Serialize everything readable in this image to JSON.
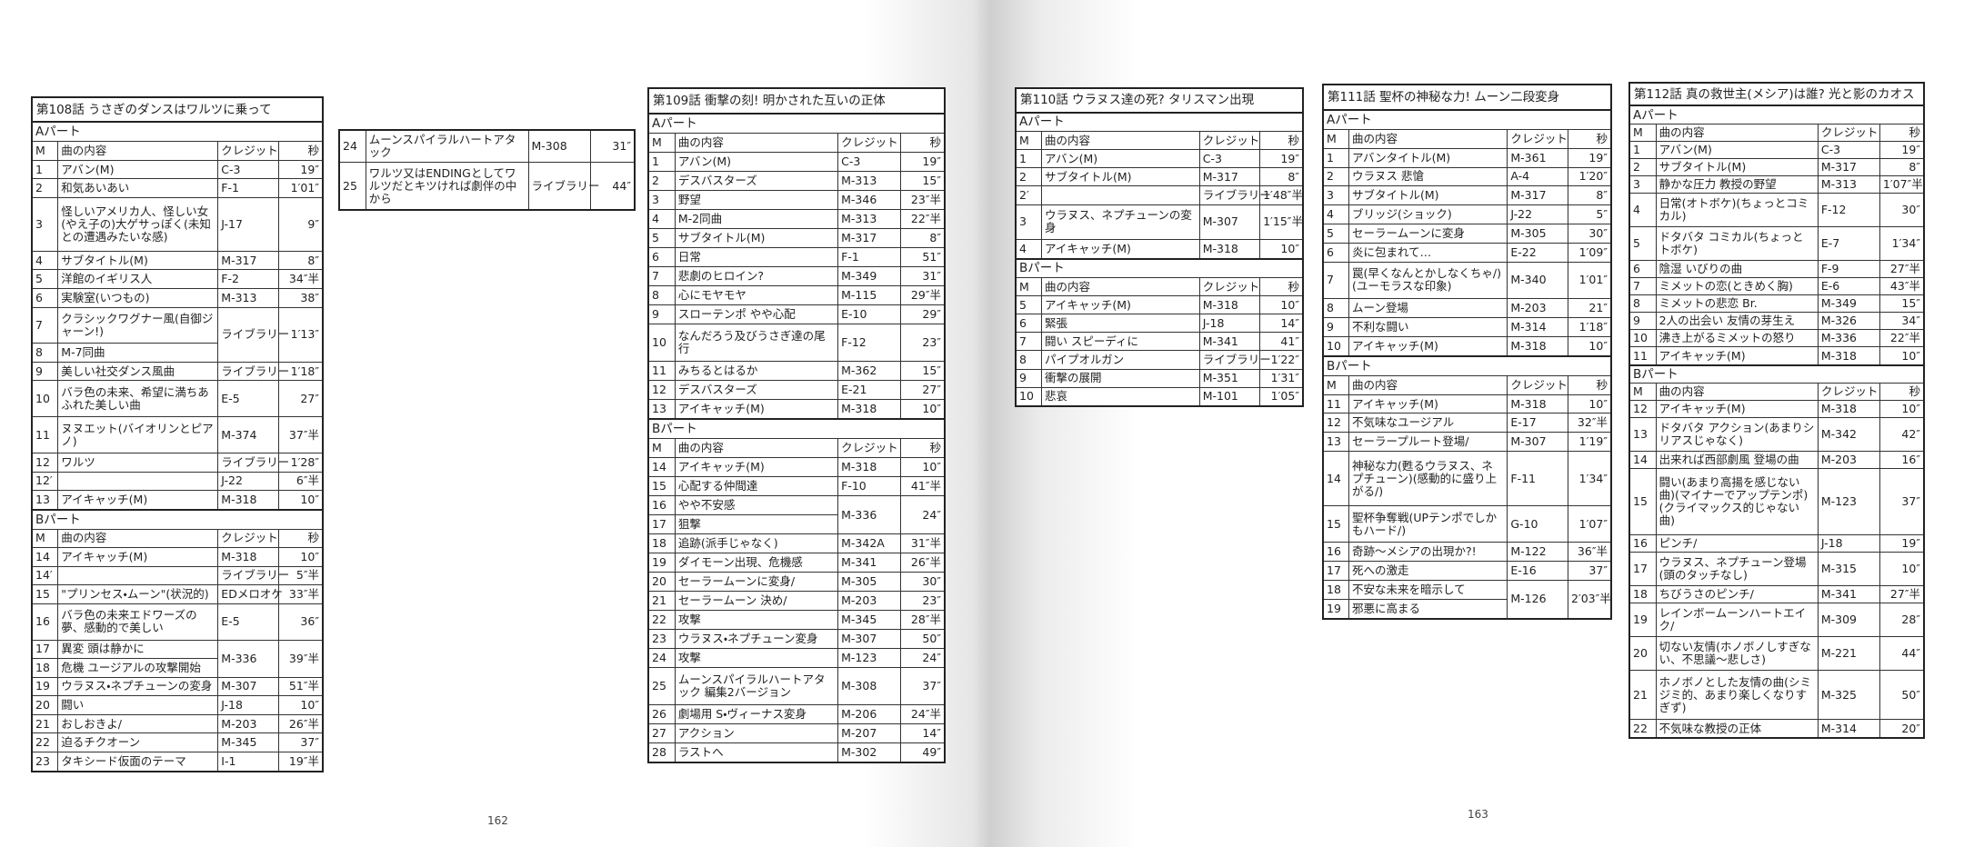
{
  "page_numbers": [
    "162",
    "163"
  ],
  "columns": [
    "M",
    "曲の内容",
    "クレジット",
    "秒"
  ],
  "tables": [
    {
      "title": "第108話 うさぎのダンスはワルツに乗って",
      "sections": [
        {
          "label": "Aパート",
          "rows": [
            {
              "m": "1",
              "content": "アバン(M)",
              "credit": "C-3",
              "sec": "19″"
            },
            {
              "m": "2",
              "content": "和気あいあい",
              "credit": "F-1",
              "sec": "1′01″"
            },
            {
              "m": "3",
              "content": "怪しいアメリカ人、怪しい女(やえ子の)大ゲサっぽく(未知との遭遇みたいな感)",
              "credit": "J-17",
              "sec": "9″"
            },
            {
              "m": "4",
              "content": "サブタイトル(M)",
              "credit": "M-317",
              "sec": "8″"
            },
            {
              "m": "5",
              "content": "洋館のイギリス人",
              "credit": "F-2",
              "sec": "34″半"
            },
            {
              "m": "6",
              "content": "実験室(いつもの)",
              "credit": "M-313",
              "sec": "38″"
            },
            {
              "group": [
                {
                  "m": "7",
                  "content": "クラシックワグナー風(自御ジャーン!)"
                },
                {
                  "m": "8",
                  "content": "M-7同曲"
                }
              ],
              "credit": "ライブラリー",
              "sec": "1′13″"
            },
            {
              "m": "9",
              "content": "美しい社交ダンス風曲",
              "credit": "ライブラリー",
              "sec": "1′18″"
            },
            {
              "m": "10",
              "content": "バラ色の未来、希望に満ちあふれた美しい曲",
              "credit": "E-5",
              "sec": "27″"
            },
            {
              "m": "11",
              "content": "ヌヌエット(バイオリンとピアノ)",
              "credit": "M-374",
              "sec": "37″半"
            },
            {
              "m": "12",
              "content": "ワルツ",
              "credit": "ライブラリー",
              "sec": "1′28″"
            },
            {
              "m": "12′",
              "credit": "J-22",
              "sec": "6″半"
            },
            {
              "m": "13",
              "content": "アイキャッチ(M)",
              "credit": "M-318",
              "sec": "10″"
            }
          ]
        },
        {
          "label": "Bパート",
          "rows": [
            {
              "m": "14",
              "content": "アイキャッチ(M)",
              "credit": "M-318",
              "sec": "10″"
            },
            {
              "m": "14′",
              "credit": "ライブラリー",
              "sec": "5″半"
            },
            {
              "m": "15",
              "content": "\"プリンセス・ムーン\"(状況的)",
              "credit": "EDメロオケ",
              "sec": "33″半"
            },
            {
              "m": "16",
              "content": "バラ色の未来エドワーズの夢、感動的で美しい",
              "credit": "E-5",
              "sec": "36″"
            },
            {
              "group": [
                {
                  "m": "17",
                  "content": "異変 頭は静かに"
                },
                {
                  "m": "18",
                  "content": "危機 ユージアルの攻撃開始"
                }
              ],
              "credit": "M-336",
              "sec": "39″半"
            },
            {
              "m": "19",
              "content": "ウラヌス・ネプチューンの変身",
              "credit": "M-307",
              "sec": "51″半"
            },
            {
              "m": "20",
              "content": "闘い",
              "credit": "J-18",
              "sec": "10″"
            },
            {
              "m": "21",
              "content": "おしおきよ/",
              "credit": "M-203",
              "sec": "26″半"
            },
            {
              "m": "22",
              "content": "迫るチクオーン",
              "credit": "M-345",
              "sec": "37″"
            },
            {
              "m": "23",
              "content": "タキシード仮面のテーマ",
              "credit": "I-1",
              "sec": "19″半"
            }
          ]
        }
      ]
    },
    {
      "sections": [
        {
          "rows": [
            {
              "m": "24",
              "content": "ムーンスパイラルハートアタック",
              "credit": "M-308",
              "sec": "31″"
            },
            {
              "m": "25",
              "content": "ワルツ又はENDINGとしてワルツだとキツければ劇伴の中から",
              "credit": "ライブラリー",
              "sec": "44″"
            }
          ]
        }
      ]
    },
    {
      "title": "第109話 衝撃の刻! 明かされた互いの正体",
      "sections": [
        {
          "label": "Aパート",
          "rows": [
            {
              "m": "1",
              "content": "アバン(M)",
              "credit": "C-3",
              "sec": "19″"
            },
            {
              "m": "2",
              "content": "デスバスターズ",
              "credit": "M-313",
              "sec": "15″"
            },
            {
              "m": "3",
              "content": "野望",
              "credit": "M-346",
              "sec": "23″半"
            },
            {
              "m": "4",
              "content": "M-2同曲",
              "credit": "M-313",
              "sec": "22″半"
            },
            {
              "m": "5",
              "content": "サブタイトル(M)",
              "credit": "M-317",
              "sec": "8″"
            },
            {
              "m": "6",
              "content": "日常",
              "credit": "F-1",
              "sec": "51″"
            },
            {
              "m": "7",
              "content": "悲劇のヒロイン?",
              "credit": "M-349",
              "sec": "31″"
            },
            {
              "m": "8",
              "content": "心にモヤモヤ",
              "credit": "M-115",
              "sec": "29″半"
            },
            {
              "m": "9",
              "content": "スローテンポ やや心配",
              "credit": "E-10",
              "sec": "29″"
            },
            {
              "m": "10",
              "content": "なんだろう及びうさぎ達の尾行",
              "credit": "F-12",
              "sec": "23″"
            },
            {
              "m": "11",
              "content": "みちるとはるか",
              "credit": "M-362",
              "sec": "15″"
            },
            {
              "m": "12",
              "content": "デスバスターズ",
              "credit": "E-21",
              "sec": "27″"
            },
            {
              "m": "13",
              "content": "アイキャッチ(M)",
              "credit": "M-318",
              "sec": "10″"
            }
          ]
        },
        {
          "label": "Bパート",
          "rows": [
            {
              "m": "14",
              "content": "アイキャッチ(M)",
              "credit": "M-318",
              "sec": "10″"
            },
            {
              "m": "15",
              "content": "心配する仲間達",
              "credit": "F-10",
              "sec": "41″半"
            },
            {
              "group": [
                {
                  "m": "16",
                  "content": "やや不安感"
                },
                {
                  "m": "17",
                  "content": "狙撃"
                }
              ],
              "credit": "M-336",
              "sec": "24″"
            },
            {
              "m": "18",
              "content": "追跡(派手じゃなく)",
              "credit": "M-342A",
              "sec": "31″半"
            },
            {
              "m": "19",
              "content": "ダイモーン出現、危機感",
              "credit": "M-341",
              "sec": "26″半"
            },
            {
              "m": "20",
              "content": "セーラームーンに変身/",
              "credit": "M-305",
              "sec": "30″"
            },
            {
              "m": "21",
              "content": "セーラームーン 決め/",
              "credit": "M-203",
              "sec": "23″"
            },
            {
              "m": "22",
              "content": "攻撃",
              "credit": "M-345",
              "sec": "28″半"
            },
            {
              "m": "23",
              "content": "ウラヌス・ネプチューン変身",
              "credit": "M-307",
              "sec": "50″"
            },
            {
              "m": "24",
              "content": "攻撃",
              "credit": "M-123",
              "sec": "24″"
            },
            {
              "m": "25",
              "content": "ムーンスパイラルハートアタック 編集2バージョン",
              "credit": "M-308",
              "sec": "37″"
            },
            {
              "m": "26",
              "content": "劇場用 S・ヴィーナス変身",
              "credit": "M-206",
              "sec": "24″半"
            },
            {
              "m": "27",
              "content": "アクション",
              "credit": "M-207",
              "sec": "14″"
            },
            {
              "m": "28",
              "content": "ラストへ",
              "credit": "M-302",
              "sec": "49″"
            }
          ]
        }
      ]
    },
    {
      "title": "第110話 ウラヌス達の死? タリスマン出現",
      "sections": [
        {
          "label": "Aパート",
          "rows": [
            {
              "m": "1",
              "content": "アバン(M)",
              "credit": "C-3",
              "sec": "19″"
            },
            {
              "m": "2",
              "content": "サブタイトル(M)",
              "credit": "M-317",
              "sec": "8″"
            },
            {
              "m": "2′",
              "credit": "ライブラリー",
              "sec": "1′48″半"
            },
            {
              "m": "3",
              "content": "ウラヌス、ネプチューンの変身",
              "credit": "M-307",
              "sec": "1′15″半"
            },
            {
              "m": "4",
              "content": "アイキャッチ(M)",
              "credit": "M-318",
              "sec": "10″"
            }
          ]
        },
        {
          "label": "Bパート",
          "rows": [
            {
              "m": "5",
              "content": "アイキャッチ(M)",
              "credit": "M-318",
              "sec": "10″"
            },
            {
              "m": "6",
              "content": "緊張",
              "credit": "J-18",
              "sec": "14″"
            },
            {
              "m": "7",
              "content": "闘い スピーディに",
              "credit": "M-341",
              "sec": "41″"
            },
            {
              "m": "8",
              "content": "パイプオルガン",
              "credit": "ライブラリー",
              "sec": "1′22″"
            },
            {
              "m": "9",
              "content": "衝撃の展開",
              "credit": "M-351",
              "sec": "1′31″"
            },
            {
              "m": "10",
              "content": "悲哀",
              "credit": "M-101",
              "sec": "1′05″"
            }
          ]
        }
      ]
    },
    {
      "title": "第111話 聖杯の神秘な力! ムーン二段変身",
      "sections": [
        {
          "label": "Aパート",
          "rows": [
            {
              "m": "1",
              "content": "アバンタイトル(M)",
              "credit": "M-361",
              "sec": "19″"
            },
            {
              "m": "2",
              "content": "ウラヌス 悲愴",
              "credit": "A-4",
              "sec": "1′20″"
            },
            {
              "m": "3",
              "content": "サブタイトル(M)",
              "credit": "M-317",
              "sec": "8″"
            },
            {
              "m": "4",
              "content": "ブリッジ(ショック)",
              "credit": "J-22",
              "sec": "5″"
            },
            {
              "m": "5",
              "content": "セーラームーンに変身",
              "credit": "M-305",
              "sec": "30″"
            },
            {
              "m": "6",
              "content": "炎に包まれて…",
              "credit": "E-22",
              "sec": "1′09″"
            },
            {
              "m": "7",
              "content": "罠(早くなんとかしなくちゃ/)(ユーモラスな印象)",
              "credit": "M-340",
              "sec": "1′01″"
            },
            {
              "m": "8",
              "content": "ムーン登場",
              "credit": "M-203",
              "sec": "21″"
            },
            {
              "m": "9",
              "content": "不利な闘い",
              "credit": "M-314",
              "sec": "1′18″"
            },
            {
              "m": "10",
              "content": "アイキャッチ(M)",
              "credit": "M-318",
              "sec": "10″"
            }
          ]
        },
        {
          "label": "Bパート",
          "rows": [
            {
              "m": "11",
              "content": "アイキャッチ(M)",
              "credit": "M-318",
              "sec": "10″"
            },
            {
              "m": "12",
              "content": "不気味なユージアル",
              "credit": "E-17",
              "sec": "32″半"
            },
            {
              "m": "13",
              "content": "セーラープルート登場/",
              "credit": "M-307",
              "sec": "1′19″"
            },
            {
              "m": "14",
              "content": "神秘な力(甦るウラヌス、ネプチューン)(感動的に盛り上がる/)",
              "credit": "F-11",
              "sec": "1′34″"
            },
            {
              "m": "15",
              "content": "聖杯争奪戦(UPテンポでしかもハード/)",
              "credit": "G-10",
              "sec": "1′07″"
            },
            {
              "m": "16",
              "content": "奇跡〜メシアの出現か?!",
              "credit": "M-122",
              "sec": "36″半"
            },
            {
              "m": "17",
              "content": "死への激走",
              "credit": "E-16",
              "sec": "37″"
            },
            {
              "group": [
                {
                  "m": "18",
                  "content": "不安な未来を暗示して"
                },
                {
                  "m": "19",
                  "content": "邪悪に高まる"
                }
              ],
              "credit": "M-126",
              "sec": "2′03″半"
            }
          ]
        }
      ]
    },
    {
      "title": "第112話 真の救世主(メシア)は誰? 光と影のカオス",
      "sections": [
        {
          "label": "Aパート",
          "rows": [
            {
              "m": "1",
              "content": "アバン(M)",
              "credit": "C-3",
              "sec": "19″"
            },
            {
              "m": "2",
              "content": "サブタイトル(M)",
              "credit": "M-317",
              "sec": "8″"
            },
            {
              "m": "3",
              "content": "静かな圧力 教授の野望",
              "credit": "M-313",
              "sec": "1′07″半"
            },
            {
              "m": "4",
              "content": "日常(オトボケ)(ちょっとコミカル)",
              "credit": "F-12",
              "sec": "30″"
            },
            {
              "m": "5",
              "content": "ドタバタ コミカル(ちょっとトボケ)",
              "credit": "E-7",
              "sec": "1′34″"
            },
            {
              "m": "6",
              "content": "陰湿 いびりの曲",
              "credit": "F-9",
              "sec": "27″半"
            },
            {
              "m": "7",
              "content": "ミメットの恋(ときめく胸)",
              "credit": "E-6",
              "sec": "43″半"
            },
            {
              "m": "8",
              "content": "ミメットの悲恋 Br.",
              "credit": "M-349",
              "sec": "15″"
            },
            {
              "m": "9",
              "content": "2人の出会い 友情の芽生え",
              "credit": "M-326",
              "sec": "34″"
            },
            {
              "m": "10",
              "content": "沸き上がるミメットの怒り",
              "credit": "M-336",
              "sec": "22″半"
            },
            {
              "m": "11",
              "content": "アイキャッチ(M)",
              "credit": "M-318",
              "sec": "10″"
            }
          ]
        },
        {
          "label": "Bパート",
          "rows": [
            {
              "m": "12",
              "content": "アイキャッチ(M)",
              "credit": "M-318",
              "sec": "10″"
            },
            {
              "m": "13",
              "content": "ドタバタ アクション(あまりシリアスじゃなく)",
              "credit": "M-342",
              "sec": "42″"
            },
            {
              "m": "14",
              "content": "出来れば西部劇風 登場の曲",
              "credit": "M-203",
              "sec": "16″"
            },
            {
              "m": "15",
              "content": "闘い(あまり高揚を感じない曲)(マイナーでアップテンポ)(クライマックス的じゃない曲)",
              "credit": "M-123",
              "sec": "37″"
            },
            {
              "m": "16",
              "content": "ピンチ/",
              "credit": "J-18",
              "sec": "19″"
            },
            {
              "m": "17",
              "content": "ウラヌス、ネプチューン登場(頭のタッチなし)",
              "credit": "M-315",
              "sec": "10″"
            },
            {
              "m": "18",
              "content": "ちびうさのピンチ/",
              "credit": "M-341",
              "sec": "27″半"
            },
            {
              "m": "19",
              "content": "レインボームーンハートエイク/",
              "credit": "M-309",
              "sec": "28″"
            },
            {
              "m": "20",
              "content": "切ない友情(ホノボノしすぎない、不思議〜悲しさ)",
              "credit": "M-221",
              "sec": "44″"
            },
            {
              "m": "21",
              "content": "ホノボノとした友情の曲(シミジミ的、あまり楽しくなりすぎず)",
              "credit": "M-325",
              "sec": "50″"
            },
            {
              "m": "22",
              "content": "不気味な教授の正体",
              "credit": "M-314",
              "sec": "20″"
            }
          ]
        }
      ]
    }
  ]
}
